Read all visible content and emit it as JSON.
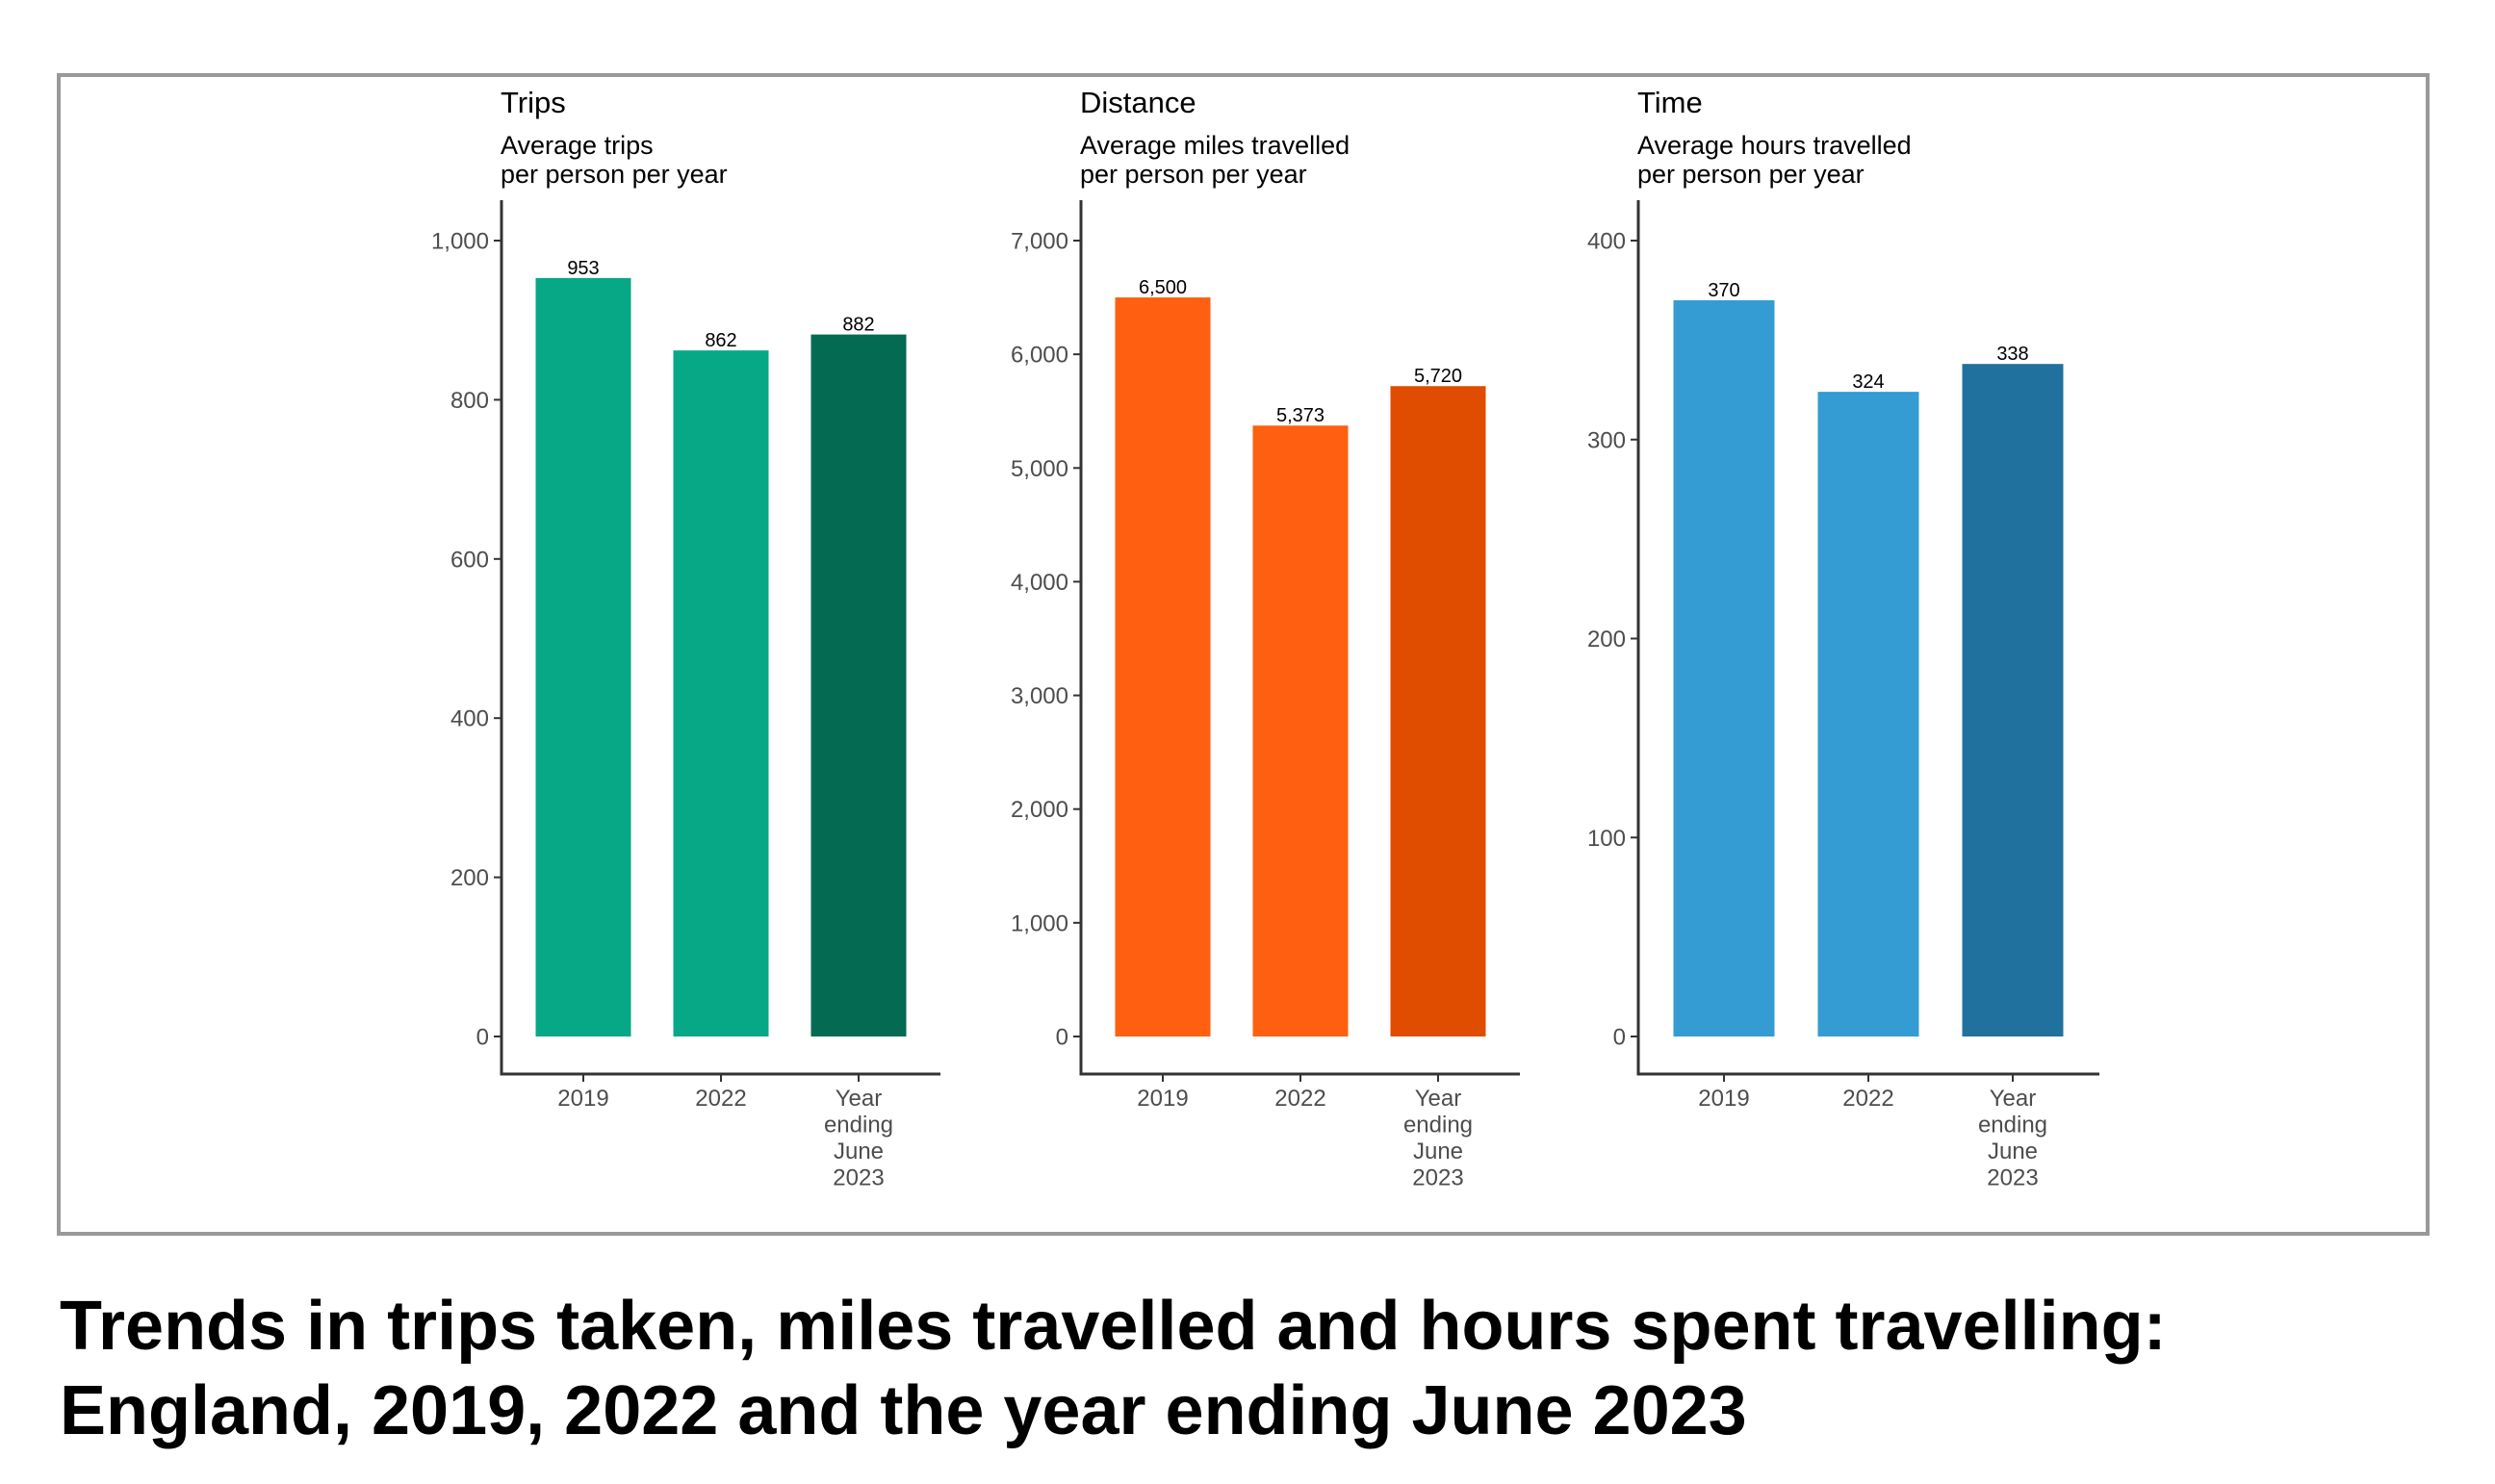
{
  "figure": {
    "title_lines": [
      "Trends in trips taken, miles travelled and hours spent travelling:",
      "England, 2019, 2022 and the year ending June 2023"
    ]
  },
  "chart_data": [
    {
      "type": "bar",
      "title": "Trips",
      "subtitle_lines": [
        "Average trips",
        "per person per year"
      ],
      "categories": [
        [
          "2019"
        ],
        [
          "2022"
        ],
        [
          "Year",
          "ending",
          "June",
          "2023"
        ]
      ],
      "values": [
        953,
        862,
        882
      ],
      "value_labels": [
        "953",
        "862",
        "882"
      ],
      "colors": [
        "#07a886",
        "#07a886",
        "#046a52"
      ],
      "ylim": [
        0,
        1000
      ],
      "yticks": [
        0,
        200,
        400,
        600,
        800,
        1000
      ],
      "ytick_labels": [
        "0",
        "200",
        "400",
        "600",
        "800",
        "1,000"
      ],
      "xlabel": "",
      "ylabel": "",
      "grid": false,
      "legend": "none"
    },
    {
      "type": "bar",
      "title": "Distance",
      "subtitle_lines": [
        "Average miles travelled",
        "per person per year"
      ],
      "categories": [
        [
          "2019"
        ],
        [
          "2022"
        ],
        [
          "Year",
          "ending",
          "June",
          "2023"
        ]
      ],
      "values": [
        6500,
        5373,
        5720
      ],
      "value_labels": [
        "6,500",
        "5,373",
        "5,720"
      ],
      "colors": [
        "#fe5f10",
        "#fe5f10",
        "#e04c00"
      ],
      "ylim": [
        0,
        7000
      ],
      "yticks": [
        0,
        1000,
        2000,
        3000,
        4000,
        5000,
        6000,
        7000
      ],
      "ytick_labels": [
        "0",
        "1,000",
        "2,000",
        "3,000",
        "4,000",
        "5,000",
        "6,000",
        "7,000"
      ],
      "xlabel": "",
      "ylabel": "",
      "grid": false,
      "legend": "none"
    },
    {
      "type": "bar",
      "title": "Time",
      "subtitle_lines": [
        "Average hours travelled",
        "per person per year"
      ],
      "categories": [
        [
          "2019"
        ],
        [
          "2022"
        ],
        [
          "Year",
          "ending",
          "June",
          "2023"
        ]
      ],
      "values": [
        370,
        324,
        338
      ],
      "value_labels": [
        "370",
        "324",
        "338"
      ],
      "colors": [
        "#349bd3",
        "#349bd3",
        "#21719e"
      ],
      "ylim": [
        0,
        400
      ],
      "yticks": [
        0,
        100,
        200,
        300,
        400
      ],
      "ytick_labels": [
        "0",
        "100",
        "200",
        "300",
        "400"
      ],
      "xlabel": "",
      "ylabel": "",
      "grid": false,
      "legend": "none"
    }
  ],
  "style": {
    "axis_color": "#333333",
    "frame_color": "#999999"
  }
}
